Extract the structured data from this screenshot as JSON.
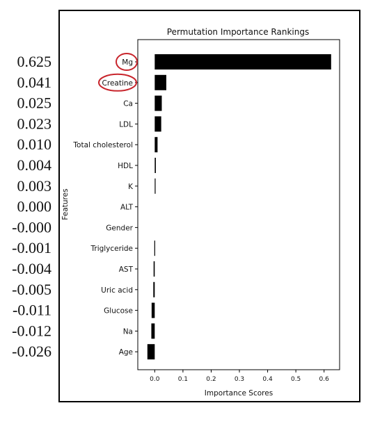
{
  "chart_data": {
    "type": "bar",
    "orientation": "horizontal",
    "title": "Permutation Importance Rankings",
    "xlabel": "Importance Scores",
    "ylabel": "Features",
    "categories": [
      "Mg",
      "Creatine",
      "Ca",
      "LDL",
      "Total cholesterol",
      "HDL",
      "K",
      "ALT",
      "Gender",
      "Triglyceride",
      "AST",
      "Uric acid",
      "Glucose",
      "Na",
      "Age"
    ],
    "values": [
      0.625,
      0.041,
      0.025,
      0.023,
      0.01,
      0.004,
      0.003,
      0.0,
      -0.0,
      -0.001,
      -0.004,
      -0.005,
      -0.011,
      -0.012,
      -0.026
    ],
    "value_labels": [
      "0.625",
      "0.041",
      "0.025",
      "0.023",
      "0.010",
      "0.004",
      "0.003",
      "0.000",
      "-0.000",
      "-0.001",
      "-0.004",
      "-0.005",
      "-0.011",
      "-0.012",
      "-0.026"
    ],
    "xticks": [
      0.0,
      0.1,
      0.2,
      0.3,
      0.4,
      0.5,
      0.6
    ],
    "xtick_labels": [
      "0.0",
      "0.1",
      "0.2",
      "0.3",
      "0.4",
      "0.5",
      "0.6"
    ],
    "xlim": [
      -0.06,
      0.655
    ],
    "highlighted": [
      "Mg",
      "Creatine"
    ],
    "grid": false,
    "colors": {
      "bar": "#000000",
      "highlight_ring": "#c8252c",
      "frame": "#000000"
    }
  }
}
